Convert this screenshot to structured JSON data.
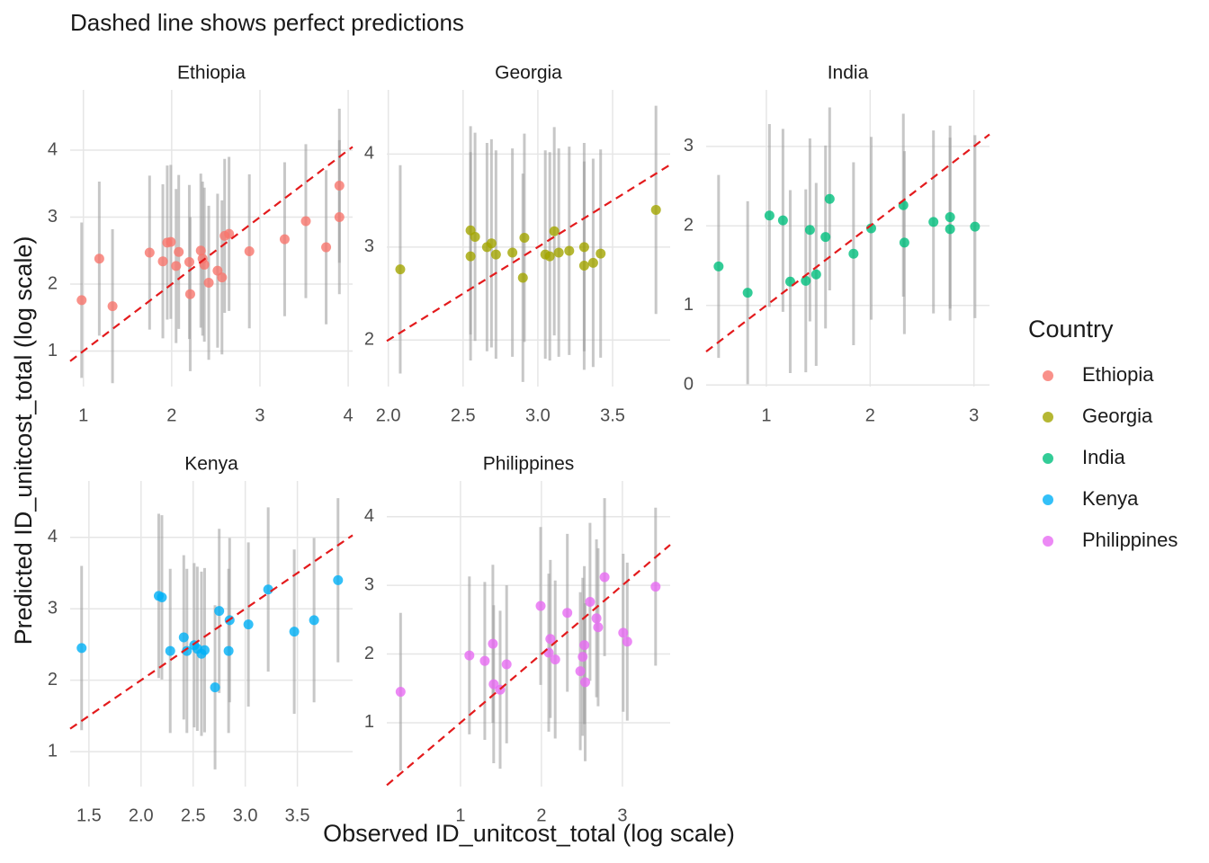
{
  "title": "Dashed line shows perfect predictions",
  "x_label": "Observed ID_unitcost_total (log scale)",
  "y_label": "Predicted ID_unitcost_total (log scale)",
  "legend_title": "Country",
  "chart_data": [
    {
      "type": "scatter",
      "title": "Ethiopia",
      "series": [
        {
          "name": "Ethiopia",
          "color": "#F8766D",
          "x": [
            0.98,
            1.18,
            1.33,
            1.75,
            1.9,
            1.95,
            1.99,
            2.05,
            2.08,
            2.2,
            2.21,
            2.33,
            2.35,
            2.37,
            2.42,
            2.52,
            2.57,
            2.6,
            2.65,
            2.88,
            3.28,
            3.52,
            3.75,
            3.9,
            3.9
          ],
          "values": [
            1.76,
            2.38,
            1.67,
            2.47,
            2.34,
            2.62,
            2.63,
            2.27,
            2.48,
            2.33,
            1.85,
            2.5,
            2.38,
            2.29,
            2.02,
            2.2,
            2.1,
            2.72,
            2.75,
            2.49,
            2.67,
            2.94,
            2.55,
            3.0,
            3.47
          ],
          "lower": [
            0.6,
            1.23,
            0.52,
            1.32,
            1.19,
            1.47,
            1.48,
            1.12,
            1.33,
            1.18,
            0.7,
            1.35,
            1.23,
            1.14,
            0.87,
            1.05,
            0.95,
            1.57,
            1.6,
            1.34,
            1.52,
            1.79,
            1.4,
            1.85,
            2.32
          ],
          "upper": [
            2.92,
            3.53,
            2.82,
            3.62,
            3.49,
            3.77,
            3.78,
            3.42,
            3.63,
            3.48,
            3.0,
            3.65,
            3.53,
            3.44,
            3.17,
            3.35,
            3.25,
            3.87,
            3.9,
            3.64,
            3.82,
            4.09,
            3.7,
            4.15,
            4.62
          ]
        }
      ],
      "xlim": [
        0.85,
        4.05
      ],
      "ylim": [
        0.47,
        4.9
      ],
      "xticks": [
        1,
        2,
        3,
        4
      ],
      "yticks": [
        1,
        2,
        3,
        4
      ],
      "grid": true
    },
    {
      "type": "scatter",
      "title": "Georgia",
      "series": [
        {
          "name": "Georgia",
          "color": "#A3A500",
          "x": [
            2.08,
            2.55,
            2.55,
            2.58,
            2.66,
            2.69,
            2.72,
            2.83,
            2.9,
            2.91,
            3.05,
            3.08,
            3.11,
            3.14,
            3.21,
            3.31,
            3.31,
            3.37,
            3.42,
            3.79
          ],
          "values": [
            2.76,
            3.18,
            2.9,
            3.11,
            3.0,
            3.04,
            2.92,
            2.94,
            2.67,
            3.1,
            2.92,
            2.9,
            3.17,
            2.94,
            2.96,
            3.0,
            2.8,
            2.83,
            2.93,
            3.4
          ],
          "lower": [
            1.64,
            2.06,
            1.78,
            1.99,
            1.88,
            1.92,
            1.8,
            1.82,
            1.55,
            1.98,
            1.8,
            1.78,
            2.05,
            1.82,
            1.84,
            1.88,
            1.68,
            1.71,
            1.81,
            2.28
          ],
          "upper": [
            3.88,
            4.3,
            4.02,
            4.23,
            4.12,
            4.16,
            4.04,
            4.06,
            3.79,
            4.22,
            4.04,
            4.02,
            4.29,
            4.06,
            4.08,
            4.12,
            3.92,
            3.95,
            4.05,
            4.52
          ]
        }
      ],
      "xlim": [
        1.99,
        3.885
      ],
      "ylim": [
        1.5,
        4.69
      ],
      "xticks": [
        {
          "value": 2,
          "label": "2.0"
        },
        2.5,
        {
          "value": 3,
          "label": "3.0"
        },
        3.5
      ],
      "yticks": [
        2,
        3,
        4
      ],
      "grid": true
    },
    {
      "type": "scatter",
      "title": "India",
      "series": [
        {
          "name": "India",
          "color": "#00BF7D",
          "x": [
            0.54,
            0.82,
            1.03,
            1.16,
            1.23,
            1.38,
            1.42,
            1.48,
            1.57,
            1.61,
            1.84,
            2.01,
            2.32,
            2.33,
            2.61,
            2.77,
            2.77,
            3.01
          ],
          "values": [
            1.49,
            1.16,
            2.13,
            2.07,
            1.3,
            1.31,
            1.95,
            1.39,
            1.86,
            2.34,
            1.65,
            1.97,
            2.26,
            1.79,
            2.05,
            2.11,
            1.96,
            1.99
          ],
          "lower": [
            0.34,
            0.01,
            0.98,
            0.92,
            0.15,
            0.16,
            0.8,
            0.24,
            0.71,
            1.19,
            0.5,
            0.82,
            1.11,
            0.64,
            0.9,
            0.96,
            0.81,
            0.84
          ],
          "upper": [
            2.64,
            2.31,
            3.28,
            3.22,
            2.45,
            2.46,
            3.1,
            2.54,
            3.01,
            3.49,
            2.8,
            3.12,
            3.41,
            2.94,
            3.2,
            3.26,
            3.11,
            3.14
          ]
        }
      ],
      "xlim": [
        0.42,
        3.15
      ],
      "ylim": [
        -0.02,
        3.71
      ],
      "xticks": [
        1,
        2,
        3
      ],
      "yticks": [
        0,
        1,
        2,
        3
      ],
      "grid": true
    },
    {
      "type": "scatter",
      "title": "Kenya",
      "series": [
        {
          "name": "Kenya",
          "color": "#00B0F6",
          "x": [
            1.43,
            2.17,
            2.2,
            2.28,
            2.41,
            2.44,
            2.51,
            2.54,
            2.58,
            2.61,
            2.71,
            2.75,
            2.84,
            2.85,
            3.03,
            3.22,
            3.47,
            3.66,
            3.89
          ],
          "values": [
            2.45,
            3.18,
            3.16,
            2.41,
            2.6,
            2.41,
            2.49,
            2.44,
            2.37,
            2.42,
            1.9,
            2.97,
            2.41,
            2.84,
            2.78,
            3.27,
            2.68,
            2.84,
            3.4
          ],
          "lower": [
            1.3,
            2.03,
            2.01,
            1.26,
            1.45,
            1.26,
            1.34,
            1.29,
            1.22,
            1.27,
            0.75,
            1.82,
            1.26,
            1.69,
            1.63,
            2.12,
            1.53,
            1.69,
            2.25
          ],
          "upper": [
            3.6,
            4.33,
            4.31,
            3.56,
            3.75,
            3.56,
            3.64,
            3.59,
            3.52,
            3.57,
            3.05,
            4.12,
            3.56,
            3.99,
            3.93,
            4.42,
            3.83,
            3.99,
            4.55
          ]
        }
      ],
      "xlim": [
        1.32,
        4.03
      ],
      "ylim": [
        0.51,
        4.79
      ],
      "xticks": [
        1.5,
        {
          "value": 2,
          "label": "2.0"
        },
        2.5,
        {
          "value": 3,
          "label": "3.0"
        },
        3.5
      ],
      "yticks": [
        1,
        2,
        3,
        4
      ],
      "grid": true
    },
    {
      "type": "scatter",
      "title": "Philippines",
      "series": [
        {
          "name": "Philippines",
          "color": "#E76BF3",
          "x": [
            0.26,
            1.11,
            1.3,
            1.4,
            1.41,
            1.49,
            1.57,
            1.99,
            2.09,
            2.11,
            2.17,
            2.32,
            2.48,
            2.51,
            2.53,
            2.54,
            2.6,
            2.68,
            2.7,
            2.78,
            3.01,
            3.06,
            3.41
          ],
          "values": [
            1.45,
            1.98,
            1.9,
            2.15,
            1.56,
            1.48,
            1.85,
            2.7,
            2.02,
            2.22,
            1.92,
            2.6,
            1.75,
            1.96,
            2.13,
            1.59,
            2.76,
            2.52,
            2.39,
            3.12,
            2.31,
            2.18,
            2.98
          ],
          "lower": [
            0.3,
            0.83,
            0.75,
            1.0,
            0.41,
            0.33,
            0.7,
            1.55,
            0.87,
            1.07,
            0.77,
            1.45,
            0.6,
            0.81,
            0.98,
            0.44,
            1.61,
            1.37,
            1.24,
            1.97,
            1.16,
            1.03,
            1.83
          ],
          "upper": [
            2.6,
            3.13,
            3.05,
            3.3,
            2.71,
            2.63,
            3.0,
            3.85,
            3.17,
            3.37,
            3.07,
            3.75,
            2.9,
            3.11,
            3.28,
            2.74,
            3.91,
            3.67,
            3.54,
            4.27,
            3.46,
            3.33,
            4.13
          ]
        }
      ],
      "xlim": [
        0.09,
        3.59
      ],
      "ylim": [
        0.07,
        4.52
      ],
      "xticks": [
        1,
        2,
        3
      ],
      "yticks": [
        1,
        2,
        3,
        4
      ],
      "grid": true
    }
  ]
}
